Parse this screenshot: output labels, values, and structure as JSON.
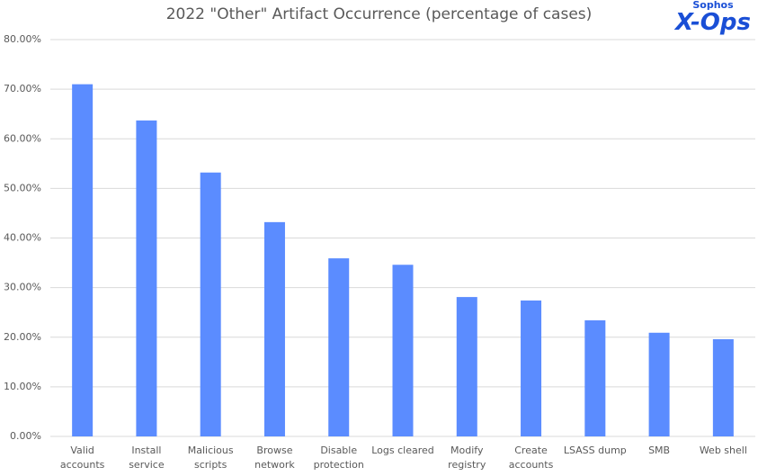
{
  "chart_data": {
    "type": "bar",
    "title": "2022 \"Other\" Artifact Occurrence (percentage of cases)",
    "logo": {
      "top": "Sophos",
      "main": "X-Ops"
    },
    "categories": [
      "Valid accounts",
      "Install service",
      "Malicious scripts",
      "Browse network",
      "Disable protection",
      "Logs cleared",
      "Modify registry",
      "Create accounts",
      "LSASS dump",
      "SMB",
      "Web shell"
    ],
    "values": [
      71,
      63.7,
      53.2,
      43.2,
      35.9,
      34.6,
      28.1,
      27.4,
      23.4,
      20.9,
      19.6
    ],
    "color": "#5b8cff",
    "ylim": [
      0,
      80
    ],
    "yticks": [
      {
        "value": 0,
        "label": "0.00%"
      },
      {
        "value": 10,
        "label": "10.00%"
      },
      {
        "value": 20,
        "label": "20.00%"
      },
      {
        "value": 30,
        "label": "30.00%"
      },
      {
        "value": 40,
        "label": "40.00%"
      },
      {
        "value": 50,
        "label": "50.00%"
      },
      {
        "value": 60,
        "label": "60.00%"
      },
      {
        "value": 70,
        "label": "70.00%"
      },
      {
        "value": 80,
        "label": "80.00%"
      }
    ],
    "grid": true
  }
}
